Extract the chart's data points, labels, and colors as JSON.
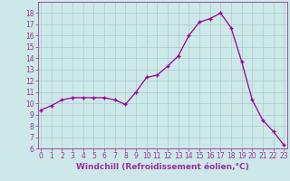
{
  "hours": [
    0,
    1,
    2,
    3,
    4,
    5,
    6,
    7,
    8,
    9,
    10,
    11,
    12,
    13,
    14,
    15,
    16,
    17,
    18,
    19,
    20,
    21,
    22,
    23
  ],
  "values": [
    9.4,
    9.8,
    10.3,
    10.5,
    10.5,
    10.5,
    10.5,
    10.3,
    9.9,
    11.0,
    12.3,
    12.5,
    13.3,
    14.2,
    16.0,
    17.2,
    17.5,
    18.0,
    16.7,
    13.7,
    10.3,
    8.5,
    7.5,
    6.3
  ],
  "line_color": "#990099",
  "marker": "+",
  "bg_color": "#cce8e8",
  "grid_color": "#aacccc",
  "xlabel": "Windchill (Refroidissement éolien,°C)",
  "ylim": [
    6,
    19
  ],
  "xlim": [
    -0.3,
    23.3
  ],
  "yticks": [
    6,
    7,
    8,
    9,
    10,
    11,
    12,
    13,
    14,
    15,
    16,
    17,
    18
  ],
  "xticks": [
    0,
    1,
    2,
    3,
    4,
    5,
    6,
    7,
    8,
    9,
    10,
    11,
    12,
    13,
    14,
    15,
    16,
    17,
    18,
    19,
    20,
    21,
    22,
    23
  ],
  "line_purple": "#993399",
  "tick_fontsize": 5.5,
  "label_fontsize": 6.5
}
